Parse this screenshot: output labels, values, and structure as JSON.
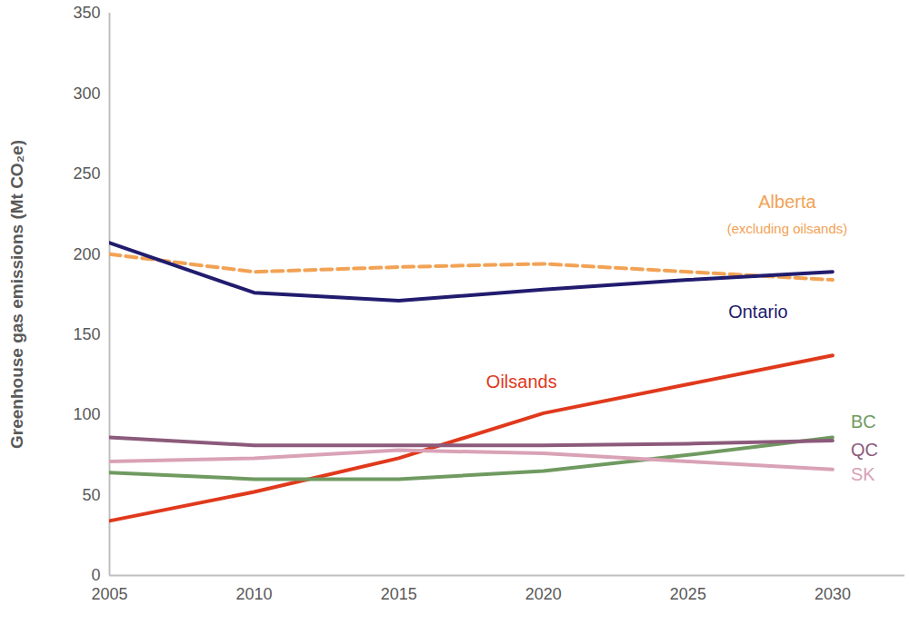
{
  "chart_data": {
    "type": "line",
    "x": [
      2005,
      2010,
      2015,
      2020,
      2025,
      2030
    ],
    "xlim": [
      2005,
      2032.5
    ],
    "xticks": [
      2005,
      2010,
      2015,
      2020,
      2025,
      2030
    ],
    "ylim": [
      0,
      350
    ],
    "yticks": [
      0,
      50,
      100,
      150,
      200,
      250,
      300,
      350
    ],
    "y_label": "Greenhouse gas emissions (Mt CO₂e)",
    "grid": false,
    "series": [
      {
        "name": "Alberta (excluding oilsands)",
        "color": "#f2a255",
        "line_style": "dashed",
        "values": [
          200,
          189,
          192,
          194,
          189,
          184
        ]
      },
      {
        "name": "Ontario",
        "color": "#211c6e",
        "line_style": "solid",
        "values": [
          207,
          176,
          171,
          178,
          184,
          189
        ]
      },
      {
        "name": "Oilsands",
        "color": "#e0391c",
        "line_style": "solid",
        "values": [
          34,
          52,
          73,
          101,
          119,
          137
        ]
      },
      {
        "name": "BC",
        "color": "#6f9a60",
        "line_style": "solid",
        "values": [
          64,
          60,
          60,
          65,
          75,
          86
        ]
      },
      {
        "name": "QC",
        "color": "#8c5a7b",
        "line_style": "solid",
        "values": [
          86,
          81,
          81,
          81,
          82,
          84
        ]
      },
      {
        "name": "SK",
        "color": "#d9a2b6",
        "line_style": "solid",
        "values": [
          71,
          73,
          78,
          76,
          71,
          66
        ]
      }
    ]
  }
}
